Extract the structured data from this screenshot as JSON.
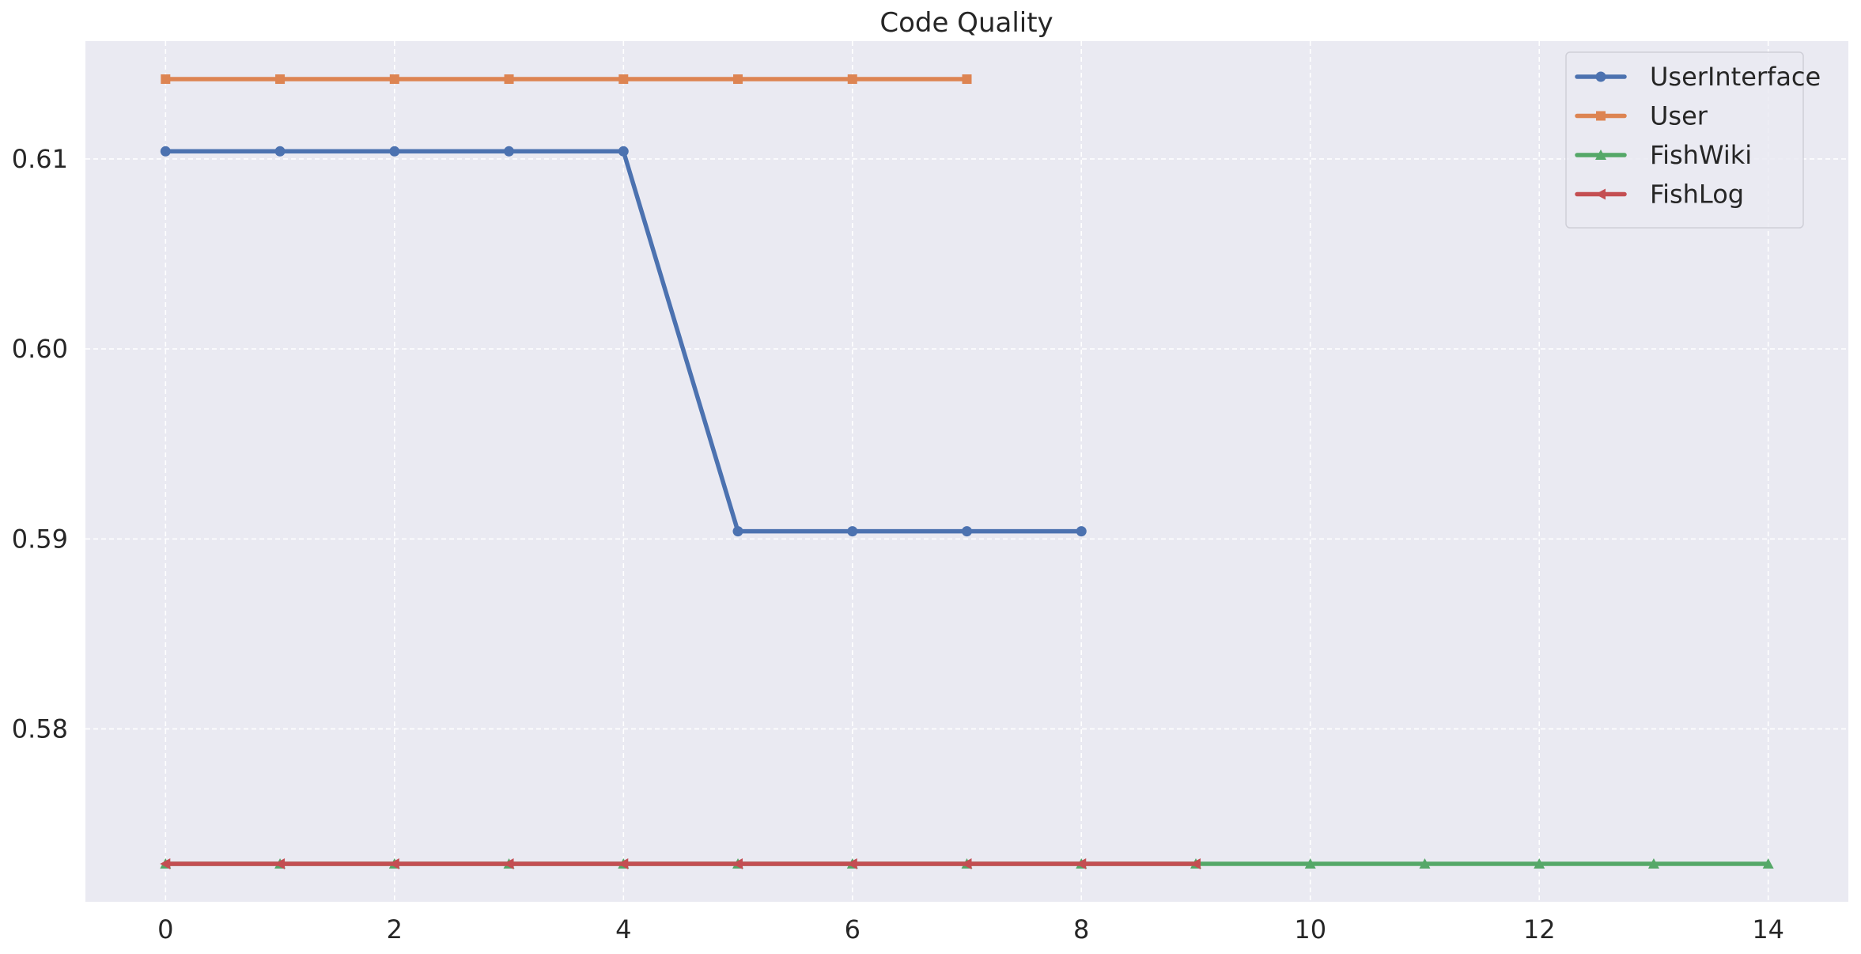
{
  "chart_data": {
    "type": "line",
    "title": "Code Quality",
    "xlabel": "",
    "ylabel": "",
    "xlim": [
      -0.7,
      14.7
    ],
    "ylim": [
      0.5709,
      0.6162
    ],
    "x_ticks": [
      0,
      2,
      4,
      6,
      8,
      10,
      12,
      14
    ],
    "y_ticks": [
      0.58,
      0.59,
      0.6,
      0.61
    ],
    "x_tick_labels": [
      "0",
      "2",
      "4",
      "6",
      "8",
      "10",
      "12",
      "14"
    ],
    "y_tick_labels": [
      "0.58",
      "0.59",
      "0.60",
      "0.61"
    ],
    "grid": true,
    "legend_position": "top-right",
    "colors": {
      "plot_background": "#eaeaf2",
      "grid": "#ffffff",
      "UserInterface": "#4c72b0",
      "User": "#dd8452",
      "FishWiki": "#55a868",
      "FishLog": "#c44e52"
    },
    "series": [
      {
        "name": "UserInterface",
        "marker": "circle",
        "x": [
          0,
          1,
          2,
          3,
          4,
          5,
          6,
          7,
          8
        ],
        "y": [
          0.6104,
          0.6104,
          0.6104,
          0.6104,
          0.6104,
          0.5904,
          0.5904,
          0.5904,
          0.5904
        ]
      },
      {
        "name": "User",
        "marker": "square",
        "x": [
          0,
          1,
          2,
          3,
          4,
          5,
          6,
          7
        ],
        "y": [
          0.6142,
          0.6142,
          0.6142,
          0.6142,
          0.6142,
          0.6142,
          0.6142,
          0.6142
        ]
      },
      {
        "name": "FishWiki",
        "marker": "triangle-up",
        "x": [
          0,
          1,
          2,
          3,
          4,
          5,
          6,
          7,
          8,
          9,
          10,
          11,
          12,
          13,
          14
        ],
        "y": [
          0.5729,
          0.5729,
          0.5729,
          0.5729,
          0.5729,
          0.5729,
          0.5729,
          0.5729,
          0.5729,
          0.5729,
          0.5729,
          0.5729,
          0.5729,
          0.5729,
          0.5729
        ]
      },
      {
        "name": "FishLog",
        "marker": "triangle-left",
        "x": [
          0,
          1,
          2,
          3,
          4,
          5,
          6,
          7,
          8,
          9
        ],
        "y": [
          0.5729,
          0.5729,
          0.5729,
          0.5729,
          0.5729,
          0.5729,
          0.5729,
          0.5729,
          0.5729,
          0.5729
        ]
      }
    ]
  }
}
